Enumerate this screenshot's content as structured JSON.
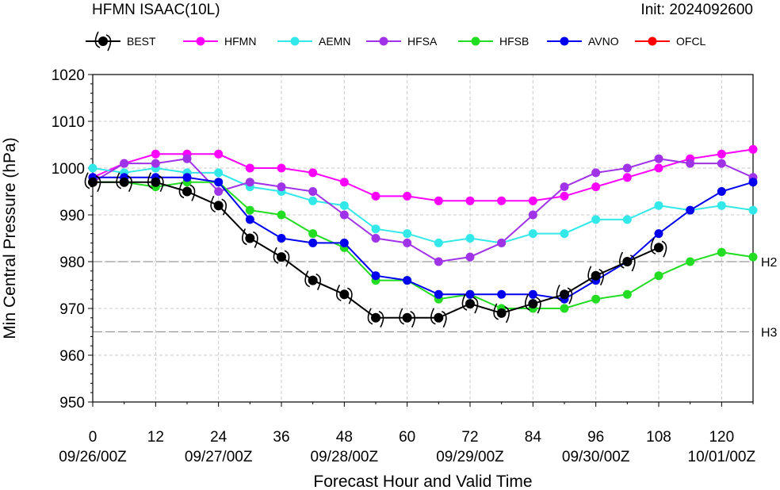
{
  "header": {
    "left_title": "HFMN ISAAC(10L)",
    "right_title": "Init: 2024092600"
  },
  "chart_data": {
    "type": "line",
    "xlabel": "Forecast Hour and Valid Time",
    "ylabel": "Min Central Pressure (hPa)",
    "xlim": [
      0,
      126
    ],
    "ylim": [
      950,
      1020
    ],
    "x_ticks": [
      0,
      12,
      24,
      36,
      48,
      60,
      72,
      84,
      96,
      108,
      120
    ],
    "x_valid_times": [
      "09/26/00Z",
      "09/27/00Z",
      "09/28/00Z",
      "09/29/00Z",
      "09/30/00Z",
      "10/01/00Z"
    ],
    "x_valid_time_hours": [
      0,
      24,
      48,
      72,
      96,
      120
    ],
    "y_ticks": [
      950,
      960,
      970,
      980,
      990,
      1000,
      1010,
      1020
    ],
    "grid": true,
    "reference_lines": [
      {
        "label": "H2",
        "y": 980
      },
      {
        "label": "H3",
        "y": 965
      }
    ],
    "legend_position": "top",
    "series": [
      {
        "name": "BEST",
        "color": "#000000",
        "marker": "hurricane",
        "x": [
          0,
          6,
          12,
          18,
          24,
          30,
          36,
          42,
          48,
          54,
          60,
          66,
          72,
          78,
          84,
          90,
          96,
          102,
          108
        ],
        "values": [
          997,
          997,
          997,
          995,
          992,
          985,
          981,
          976,
          973,
          968,
          968,
          968,
          971,
          969,
          971,
          973,
          977,
          980,
          983
        ]
      },
      {
        "name": "HFMN",
        "color": "#ff00ff",
        "marker": "circle",
        "x": [
          0,
          6,
          12,
          18,
          24,
          30,
          36,
          42,
          48,
          54,
          60,
          66,
          72,
          78,
          84,
          90,
          96,
          102,
          108,
          114,
          120,
          126
        ],
        "values": [
          998,
          1001,
          1003,
          1003,
          1003,
          1000,
          1000,
          999,
          997,
          994,
          994,
          993,
          993,
          993,
          993,
          994,
          996,
          998,
          1000,
          1002,
          1003,
          1004
        ]
      },
      {
        "name": "AEMN",
        "color": "#33e8e8",
        "marker": "circle",
        "x": [
          0,
          6,
          12,
          18,
          24,
          30,
          36,
          42,
          48,
          54,
          60,
          66,
          72,
          78,
          84,
          90,
          96,
          102,
          108,
          114,
          120,
          126
        ],
        "values": [
          1000,
          999,
          1000,
          999,
          999,
          996,
          995,
          993,
          992,
          987,
          986,
          984,
          985,
          984,
          986,
          986,
          989,
          989,
          992,
          991,
          992,
          991
        ]
      },
      {
        "name": "HFSA",
        "color": "#a033e8",
        "marker": "circle",
        "x": [
          0,
          6,
          12,
          18,
          24,
          30,
          36,
          42,
          48,
          54,
          60,
          66,
          72,
          78,
          84,
          90,
          96,
          102,
          108,
          114,
          120,
          126
        ],
        "values": [
          997,
          1001,
          1001,
          1002,
          995,
          997,
          996,
          995,
          990,
          985,
          984,
          980,
          981,
          984,
          990,
          996,
          999,
          1000,
          1002,
          1001,
          1001,
          998
        ]
      },
      {
        "name": "HFSB",
        "color": "#22dd22",
        "marker": "circle",
        "x": [
          0,
          6,
          12,
          18,
          24,
          30,
          36,
          42,
          48,
          54,
          60,
          66,
          72,
          78,
          84,
          90,
          96,
          102,
          108,
          114,
          120,
          126
        ],
        "values": [
          997,
          997,
          996,
          997,
          997,
          991,
          990,
          986,
          983,
          976,
          976,
          972,
          973,
          970,
          970,
          970,
          972,
          973,
          977,
          980,
          982,
          981
        ]
      },
      {
        "name": "AVNO",
        "color": "#0000ee",
        "marker": "circle",
        "x": [
          0,
          6,
          12,
          18,
          24,
          30,
          36,
          42,
          48,
          54,
          60,
          66,
          72,
          78,
          84,
          90,
          96,
          102,
          108,
          114,
          120,
          126
        ],
        "values": [
          998,
          998,
          998,
          998,
          997,
          989,
          985,
          984,
          984,
          977,
          976,
          973,
          973,
          973,
          973,
          972,
          976,
          980,
          986,
          991,
          995,
          997
        ]
      },
      {
        "name": "OFCL",
        "color": "#ff0000",
        "marker": "circle",
        "x": [],
        "values": []
      }
    ]
  }
}
